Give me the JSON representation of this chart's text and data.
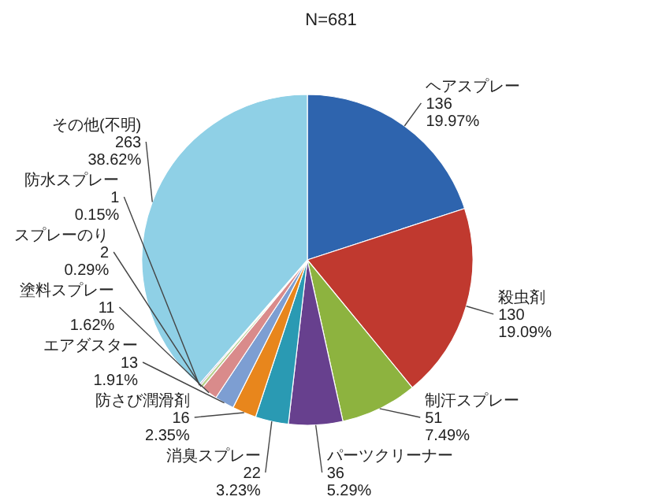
{
  "chart_data": {
    "type": "pie",
    "title": "N=681",
    "categories": [
      "ヘアスプレー",
      "殺虫剤",
      "制汗スプレー",
      "パーツクリーナー",
      "消臭スプレー",
      "防さび潤滑剤",
      "エアダスター",
      "塗料スプレー",
      "スプレーのり",
      "防水スプレー",
      "その他(不明)"
    ],
    "values": [
      136,
      130,
      51,
      36,
      22,
      16,
      13,
      11,
      2,
      1,
      263
    ],
    "value_labels": [
      "136\n19.97%",
      "130\n19.09%",
      "51\n7.49%",
      "36\n5.29%",
      "22\n3.23%",
      "16\n2.35%",
      "13\n1.91%",
      "11\n1.62%",
      "2\n0.29%",
      "1\n0.15%",
      "263\n38.62%"
    ],
    "colors": [
      "#2e64ae",
      "#c0392f",
      "#8db33f",
      "#67408e",
      "#2a9ab3",
      "#e8861c",
      "#7d9ed2",
      "#d98b8b",
      "#b7cf8c",
      "#a597c2",
      "#8fd0e6"
    ],
    "legend": false
  }
}
